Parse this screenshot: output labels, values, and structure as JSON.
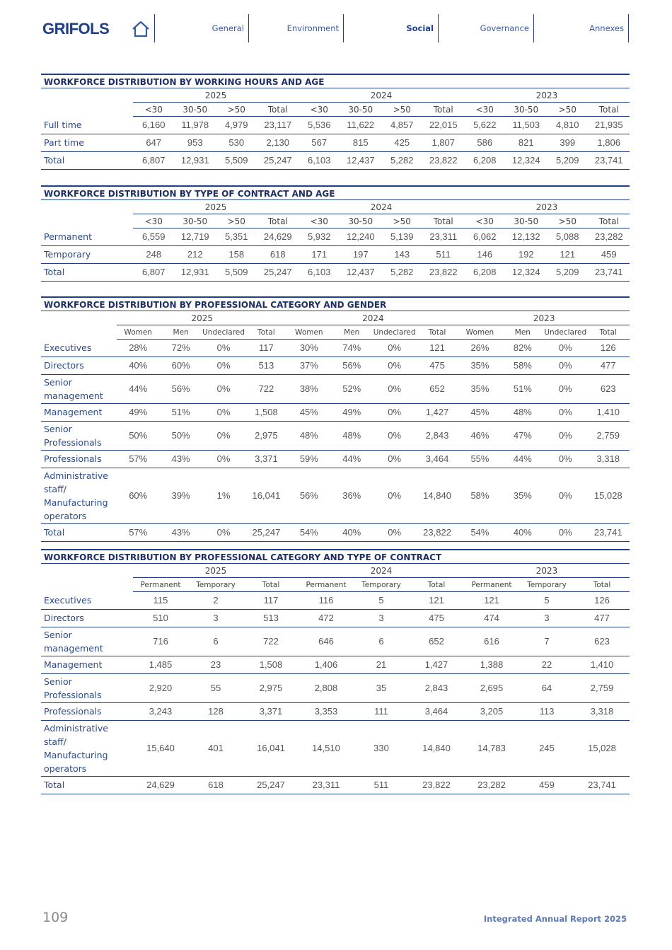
{
  "header": {
    "logo": "GRIFOLS",
    "nav": [
      "General",
      "Environment",
      "Social",
      "Governance",
      "Annexes"
    ]
  },
  "tables": [
    {
      "title": "WORKFORCE DISTRIBUTION BY WORKING HOURS AND AGE",
      "years": [
        "2025",
        "2024",
        "2023"
      ],
      "columns": [
        "<30",
        "30-50",
        ">50",
        "Total",
        "<30",
        "30-50",
        ">50",
        "Total",
        "<30",
        "30-50",
        ">50",
        "Total"
      ],
      "rows": [
        [
          "Full time",
          "6,160",
          "11,978",
          "4,979",
          "23,117",
          "5,536",
          "11,622",
          "4,857",
          "22,015",
          "5,622",
          "11,503",
          "4,810",
          "21,935"
        ],
        [
          "Part time",
          "647",
          "953",
          "530",
          "2,130",
          "567",
          "815",
          "425",
          "1,807",
          "586",
          "821",
          "399",
          "1,806"
        ],
        [
          "Total",
          "6,807",
          "12,931",
          "5,509",
          "25,247",
          "6,103",
          "12,437",
          "5,282",
          "23,822",
          "6,208",
          "12,324",
          "5,209",
          "23,741"
        ]
      ]
    },
    {
      "title": "WORKFORCE DISTRIBUTION BY TYPE OF CONTRACT AND AGE",
      "years": [
        "2025",
        "2024",
        "2023"
      ],
      "columns": [
        "<30",
        "30-50",
        ">50",
        "Total",
        "<30",
        "30-50",
        ">50",
        "Total",
        "<30",
        "30-50",
        ">50",
        "Total"
      ],
      "rows": [
        [
          "Permanent",
          "6,559",
          "12,719",
          "5,351",
          "24,629",
          "5,932",
          "12,240",
          "5,139",
          "23,311",
          "6,062",
          "12,132",
          "5,088",
          "23,282"
        ],
        [
          "Temporary",
          "248",
          "212",
          "158",
          "618",
          "171",
          "197",
          "143",
          "511",
          "146",
          "192",
          "121",
          "459"
        ],
        [
          "Total",
          "6,807",
          "12,931",
          "5,509",
          "25,247",
          "6,103",
          "12,437",
          "5,282",
          "23,822",
          "6,208",
          "12,324",
          "5,209",
          "23,741"
        ]
      ]
    },
    {
      "title": "WORKFORCE DISTRIBUTION BY PROFESSIONAL CATEGORY AND GENDER",
      "years": [
        "2025",
        "2024",
        "2023"
      ],
      "columns": [
        "Women",
        "Men",
        "Undeclared",
        "Total",
        "Women",
        "Men",
        "Undeclared",
        "Total",
        "Women",
        "Men",
        "Undeclared",
        "Total"
      ],
      "rows": [
        [
          "Executives",
          "28%",
          "72%",
          "0%",
          "117",
          "30%",
          "74%",
          "0%",
          "121",
          "26%",
          "82%",
          "0%",
          "126"
        ],
        [
          "Directors",
          "40%",
          "60%",
          "0%",
          "513",
          "37%",
          "56%",
          "0%",
          "475",
          "35%",
          "58%",
          "0%",
          "477"
        ],
        [
          "Senior management",
          "44%",
          "56%",
          "0%",
          "722",
          "38%",
          "52%",
          "0%",
          "652",
          "35%",
          "51%",
          "0%",
          "623"
        ],
        [
          "Management",
          "49%",
          "51%",
          "0%",
          "1,508",
          "45%",
          "49%",
          "0%",
          "1,427",
          "45%",
          "48%",
          "0%",
          "1,410"
        ],
        [
          "Senior Professionals",
          "50%",
          "50%",
          "0%",
          "2,975",
          "48%",
          "48%",
          "0%",
          "2,843",
          "46%",
          "47%",
          "0%",
          "2,759"
        ],
        [
          "Professionals",
          "57%",
          "43%",
          "0%",
          "3,371",
          "59%",
          "44%",
          "0%",
          "3,464",
          "55%",
          "44%",
          "0%",
          "3,318"
        ],
        [
          "Administrative staff/ Manufacturing operators",
          "60%",
          "39%",
          "1%",
          "16,041",
          "56%",
          "36%",
          "0%",
          "14,840",
          "58%",
          "35%",
          "0%",
          "15,028"
        ],
        [
          "Total",
          "57%",
          "43%",
          "0%",
          "25,247",
          "54%",
          "40%",
          "0%",
          "23,822",
          "54%",
          "40%",
          "0%",
          "23,741"
        ]
      ]
    },
    {
      "title": "WORKFORCE DISTRIBUTION BY PROFESSIONAL CATEGORY AND TYPE OF CONTRACT",
      "years": [
        "2025",
        "2024",
        "2023"
      ],
      "columns": [
        "Permanent",
        "Temporary",
        "Total",
        "Permanent",
        "Temporary",
        "Total",
        "Permanent",
        "Temporary",
        "Total"
      ],
      "rows": [
        [
          "Executives",
          "115",
          "2",
          "117",
          "116",
          "5",
          "121",
          "121",
          "5",
          "126"
        ],
        [
          "Directors",
          "510",
          "3",
          "513",
          "472",
          "3",
          "475",
          "474",
          "3",
          "477"
        ],
        [
          "Senior management",
          "716",
          "6",
          "722",
          "646",
          "6",
          "652",
          "616",
          "7",
          "623"
        ],
        [
          "Management",
          "1,485",
          "23",
          "1,508",
          "1,406",
          "21",
          "1,427",
          "1,388",
          "22",
          "1,410"
        ],
        [
          "Senior Professionals",
          "2,920",
          "55",
          "2,975",
          "2,808",
          "35",
          "2,843",
          "2,695",
          "64",
          "2,759"
        ],
        [
          "Professionals",
          "3,243",
          "128",
          "3,371",
          "3,353",
          "111",
          "3,464",
          "3,205",
          "113",
          "3,318"
        ],
        [
          "Administrative staff/ Manufacturing operators",
          "15,640",
          "401",
          "16,041",
          "14,510",
          "330",
          "14,840",
          "14,783",
          "245",
          "15,028"
        ],
        [
          "Total",
          "24,629",
          "618",
          "25,247",
          "23,311",
          "511",
          "23,822",
          "23,282",
          "459",
          "23,741"
        ]
      ]
    }
  ],
  "footer": {
    "page": "109",
    "report": "Integrated Annual Report 2025"
  }
}
